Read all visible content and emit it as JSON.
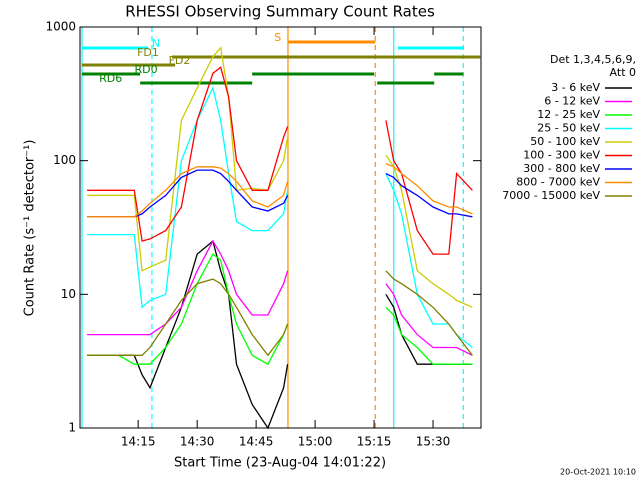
{
  "chart_data": {
    "type": "line",
    "title": "RHESSI Observing Summary Count Rates",
    "xlabel": "Start Time (23-Aug-04 14:01:22)",
    "ylabel": "Count Rate (s⁻¹ detector⁻¹)",
    "legend_title": [
      "Det 1,3,4,5,6,9,",
      "Att 0"
    ],
    "footer": "20-Oct-2021 10:10",
    "log_y": true,
    "xlim": [
      0.2,
      102.2
    ],
    "xticks": [
      {
        "value": 15,
        "label": "14:15"
      },
      {
        "value": 30,
        "label": "14:30"
      },
      {
        "value": 45,
        "label": "14:45"
      },
      {
        "value": 60,
        "label": "15:00"
      },
      {
        "value": 75,
        "label": "15:15"
      },
      {
        "value": 90,
        "label": "15:30"
      }
    ],
    "ylim": [
      1,
      1000
    ],
    "yticks": [
      1,
      10,
      100,
      1000
    ],
    "x": [
      2,
      6,
      10,
      14,
      16,
      18,
      22,
      26,
      30,
      34,
      36,
      38,
      40,
      44,
      48,
      52,
      53,
      65,
      78,
      80,
      82,
      86,
      90,
      94,
      96,
      100
    ],
    "series": [
      {
        "name": "3 - 6 keV",
        "color": "#000000",
        "values": [
          3.5,
          3.5,
          3.5,
          3.5,
          2.5,
          2,
          4,
          8,
          20,
          25,
          15,
          10,
          3,
          1.5,
          1,
          2,
          3,
          null,
          10,
          8,
          5,
          3,
          3,
          3,
          3,
          3
        ]
      },
      {
        "name": "6 - 12 keV",
        "color": "#ff00ff",
        "values": [
          5,
          5,
          5,
          5,
          5,
          5,
          6,
          8,
          15,
          25,
          20,
          15,
          10,
          7,
          7,
          12,
          15,
          null,
          12,
          10,
          7,
          5,
          4,
          4,
          4,
          3.5
        ]
      },
      {
        "name": "12 - 25 keV",
        "color": "#00ff00",
        "values": [
          3.5,
          3.5,
          3.5,
          3,
          3,
          3,
          4,
          6,
          12,
          20,
          18,
          10,
          6,
          3.5,
          3,
          5,
          6,
          null,
          8,
          7,
          5,
          4,
          3,
          3,
          3,
          3
        ]
      },
      {
        "name": "25 - 50 keV",
        "color": "#00ffff",
        "values": [
          28,
          28,
          28,
          28,
          8,
          9,
          10,
          100,
          200,
          350,
          200,
          80,
          35,
          30,
          30,
          40,
          60,
          null,
          80,
          60,
          40,
          10,
          6,
          6,
          5,
          4
        ]
      },
      {
        "name": "50 - 100 keV",
        "color": "#cccc00",
        "values": [
          55,
          55,
          55,
          55,
          15,
          16,
          18,
          200,
          350,
          600,
          700,
          300,
          60,
          62,
          60,
          100,
          150,
          null,
          110,
          90,
          60,
          15,
          12,
          10,
          9,
          8
        ]
      },
      {
        "name": "100 - 300 keV",
        "color": "#ff0000",
        "values": [
          60,
          60,
          60,
          60,
          25,
          26,
          30,
          45,
          200,
          450,
          500,
          300,
          100,
          60,
          60,
          150,
          180,
          null,
          200,
          100,
          80,
          30,
          20,
          20,
          80,
          60
        ]
      },
      {
        "name": "300 - 800 keV",
        "color": "#0000ff",
        "values": [
          38,
          38,
          38,
          38,
          40,
          45,
          55,
          75,
          85,
          85,
          80,
          70,
          60,
          45,
          42,
          48,
          55,
          null,
          80,
          75,
          65,
          55,
          45,
          40,
          40,
          38
        ]
      },
      {
        "name": "800 - 7000 keV",
        "color": "#ff8c00",
        "values": [
          38,
          38,
          38,
          38,
          42,
          48,
          60,
          80,
          90,
          90,
          88,
          80,
          70,
          50,
          45,
          55,
          70,
          null,
          95,
          90,
          80,
          65,
          50,
          45,
          45,
          40
        ]
      },
      {
        "name": "7000 - 15000 keV",
        "color": "#808000",
        "values": [
          3.5,
          3.5,
          3.5,
          3.5,
          3.5,
          4,
          6,
          9,
          12,
          13,
          12,
          10,
          8,
          5,
          3.5,
          5,
          6,
          null,
          15,
          13,
          12,
          10,
          8,
          6,
          5,
          3.5
        ]
      }
    ],
    "flags": [
      {
        "label": "S",
        "color": "#ff8c00",
        "label_x": 50.5,
        "segments": [
          [
            53.1,
            75.3
          ]
        ]
      },
      {
        "label": "N",
        "color": "#00ffff",
        "label_x": 19.5,
        "segments": [
          [
            0.7,
            17.5
          ],
          [
            81.1,
            97.7
          ]
        ]
      },
      {
        "label": "FD1",
        "color": "#808000",
        "label_x": 17.5,
        "segments": [
          [
            23.6,
            102
          ]
        ]
      },
      {
        "label": "FD2",
        "color": "#808000",
        "label_x": 25.5,
        "segments": [
          [
            0.7,
            24.4
          ]
        ]
      },
      {
        "label": "RD0",
        "color": "#008000",
        "label_x": 17,
        "segments": [
          [
            0.7,
            15.5
          ],
          [
            44,
            75
          ],
          [
            90.3,
            97.7
          ]
        ]
      },
      {
        "label": "RD6",
        "color": "#008000",
        "label_x": 8,
        "segments": [
          [
            15.5,
            44
          ],
          [
            75.8,
            90.3
          ]
        ]
      }
    ],
    "vlines": [
      {
        "x": 0.7,
        "color": "#00ffff",
        "dashed": false
      },
      {
        "x": 18.5,
        "color": "#00ffff",
        "dashed": true
      },
      {
        "x": 53.1,
        "color": "#ff8c00",
        "dashed": false
      },
      {
        "x": 75.3,
        "color": "#ff8c00",
        "dashed": true
      },
      {
        "x": 80,
        "color": "#00ffff",
        "dashed": false
      },
      {
        "x": 97.7,
        "color": "#00ffff",
        "dashed": true
      }
    ]
  }
}
